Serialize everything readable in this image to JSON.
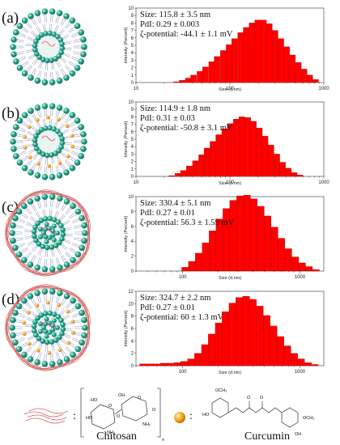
{
  "panels": [
    {
      "label": "(a)",
      "size": "Size: 115.8 ± 3.5 nm",
      "pdi": "PdI: 0.29 ± 0.003",
      "zeta": "ζ-potential: -44.1 ± 1.1 mV",
      "coat": false,
      "cur": false
    },
    {
      "label": "(b)",
      "size": "Size: 114.9 ± 1.8 nm",
      "pdi": "PdI: 0.31 ± 0.03",
      "zeta": "ζ-potential: -50.8 ± 3.1 mV",
      "coat": false,
      "cur": true
    },
    {
      "label": "(c)",
      "size": "Size: 330.4 ± 5.1 nm",
      "pdi": "PdI: 0.27 ± 0.01",
      "zeta": "ζ-potential: 56.3 ± 1.59 mV",
      "coat": true,
      "cur": false
    },
    {
      "label": "(d)",
      "size": "Size: 324.7 ± 2.2 nm",
      "pdi": "PdI: 0.27 ± 0.01",
      "zeta": "ζ-potential: 60 ± 1.3 mV",
      "coat": true,
      "cur": true
    }
  ],
  "legend": {
    "chitosan": "Chitosan",
    "curcumin": "Curcumin",
    "colon": ":"
  },
  "chem_labels": {
    "ho1": "HO",
    "oh1": "OH",
    "ho2": "HO",
    "o1": "O",
    "o2": "O",
    "o3": "O",
    "o4": "O",
    "nh2a": "NH₂",
    "nh2b": "NH₂",
    "n": "n",
    "och3a": "OCH₃",
    "och3b": "OCH₃",
    "ho3": "HO",
    "oh2": "OH",
    "o5": "O",
    "o6": "O"
  },
  "colors": {
    "bar": "#ff0000",
    "bar_edge": "#9a0000",
    "bead": "#2aa58c",
    "bead_dark": "#0f6b58",
    "tail": "#9a9fc8",
    "chitosan": "#d45a5a",
    "curcumin": "#f0a020"
  },
  "chart_data": [
    {
      "type": "bar",
      "xlabel": "Size (d.nm)",
      "ylabel": "Intensity (Percent)",
      "x_scale": "log",
      "xlim": [
        10,
        1000
      ],
      "ylim": [
        0,
        10
      ],
      "yticks": [
        0,
        1,
        2,
        3,
        4,
        5,
        6,
        7,
        8,
        9,
        10
      ],
      "xticks": [
        10,
        100,
        1000
      ],
      "x": [
        27,
        31,
        36,
        41,
        48,
        55,
        64,
        73,
        85,
        98,
        112,
        130,
        149,
        172,
        198,
        228,
        263,
        303,
        349,
        402,
        464,
        535,
        616,
        710,
        818
      ],
      "values": [
        0.1,
        0.3,
        0.6,
        1.0,
        1.5,
        2.1,
        2.8,
        3.5,
        4.3,
        5.1,
        5.9,
        6.7,
        7.4,
        8.0,
        8.4,
        8.4,
        7.9,
        7.0,
        5.9,
        4.8,
        3.7,
        2.7,
        1.8,
        1.0,
        0.4
      ]
    },
    {
      "type": "bar",
      "xlabel": "Size (d.nm)",
      "ylabel": "Intensity (Percent)",
      "x_scale": "log",
      "xlim": [
        10,
        1000
      ],
      "ylim": [
        0,
        10
      ],
      "yticks": [
        0,
        1,
        2,
        3,
        4,
        5,
        6,
        7,
        8,
        9,
        10
      ],
      "xticks": [
        10,
        100,
        1000
      ],
      "x": [
        24,
        28,
        32,
        37,
        43,
        50,
        57,
        66,
        76,
        88,
        101,
        117,
        134,
        155,
        178,
        206,
        237,
        274,
        316,
        364,
        420,
        484,
        559
      ],
      "values": [
        0.1,
        0.4,
        0.8,
        1.4,
        2.1,
        2.9,
        3.8,
        4.7,
        5.6,
        6.4,
        7.1,
        7.7,
        8.0,
        7.9,
        7.4,
        6.5,
        5.4,
        4.2,
        3.0,
        1.9,
        1.1,
        0.5,
        0.2
      ]
    },
    {
      "type": "bar",
      "xlabel": "Size (d.nm)",
      "ylabel": "Intensity (Percent)",
      "x_scale": "log",
      "xlim": [
        40,
        1600
      ],
      "ylim": [
        0,
        10
      ],
      "yticks": [
        0,
        2,
        4,
        6,
        8,
        10
      ],
      "xticks": [
        100,
        1000
      ],
      "x": [
        105,
        120,
        137,
        157,
        180,
        206,
        236,
        270,
        309,
        354,
        405,
        464,
        531,
        608,
        696,
        797,
        913,
        1045,
        1197,
        1370
      ],
      "values": [
        0.5,
        1.3,
        2.4,
        3.8,
        5.4,
        7.0,
        8.4,
        9.5,
        10.1,
        10.2,
        9.7,
        8.7,
        7.4,
        5.9,
        4.4,
        3.0,
        1.9,
        1.1,
        0.6,
        0.2
      ]
    },
    {
      "type": "bar",
      "xlabel": "Size (d.nm)",
      "ylabel": "Intensity (Percent)",
      "x_scale": "log",
      "xlim": [
        40,
        1600
      ],
      "ylim": [
        0,
        12
      ],
      "yticks": [
        0,
        2,
        4,
        6,
        8,
        10,
        12
      ],
      "xticks": [
        100,
        1000
      ],
      "x": [
        46,
        53,
        60,
        69,
        79,
        90,
        103,
        118,
        135,
        155,
        177,
        203,
        232,
        266,
        304,
        348,
        398,
        456,
        522,
        597,
        684,
        783,
        896,
        1026,
        1174,
        1344
      ],
      "values": [
        0.3,
        0.3,
        0.3,
        0.4,
        0.4,
        0.5,
        0.7,
        1.1,
        2.0,
        3.4,
        5.1,
        6.9,
        8.7,
        10.1,
        11.0,
        11.2,
        10.7,
        9.6,
        8.1,
        6.4,
        4.7,
        3.2,
        2.0,
        1.1,
        0.5,
        0.2
      ]
    }
  ]
}
